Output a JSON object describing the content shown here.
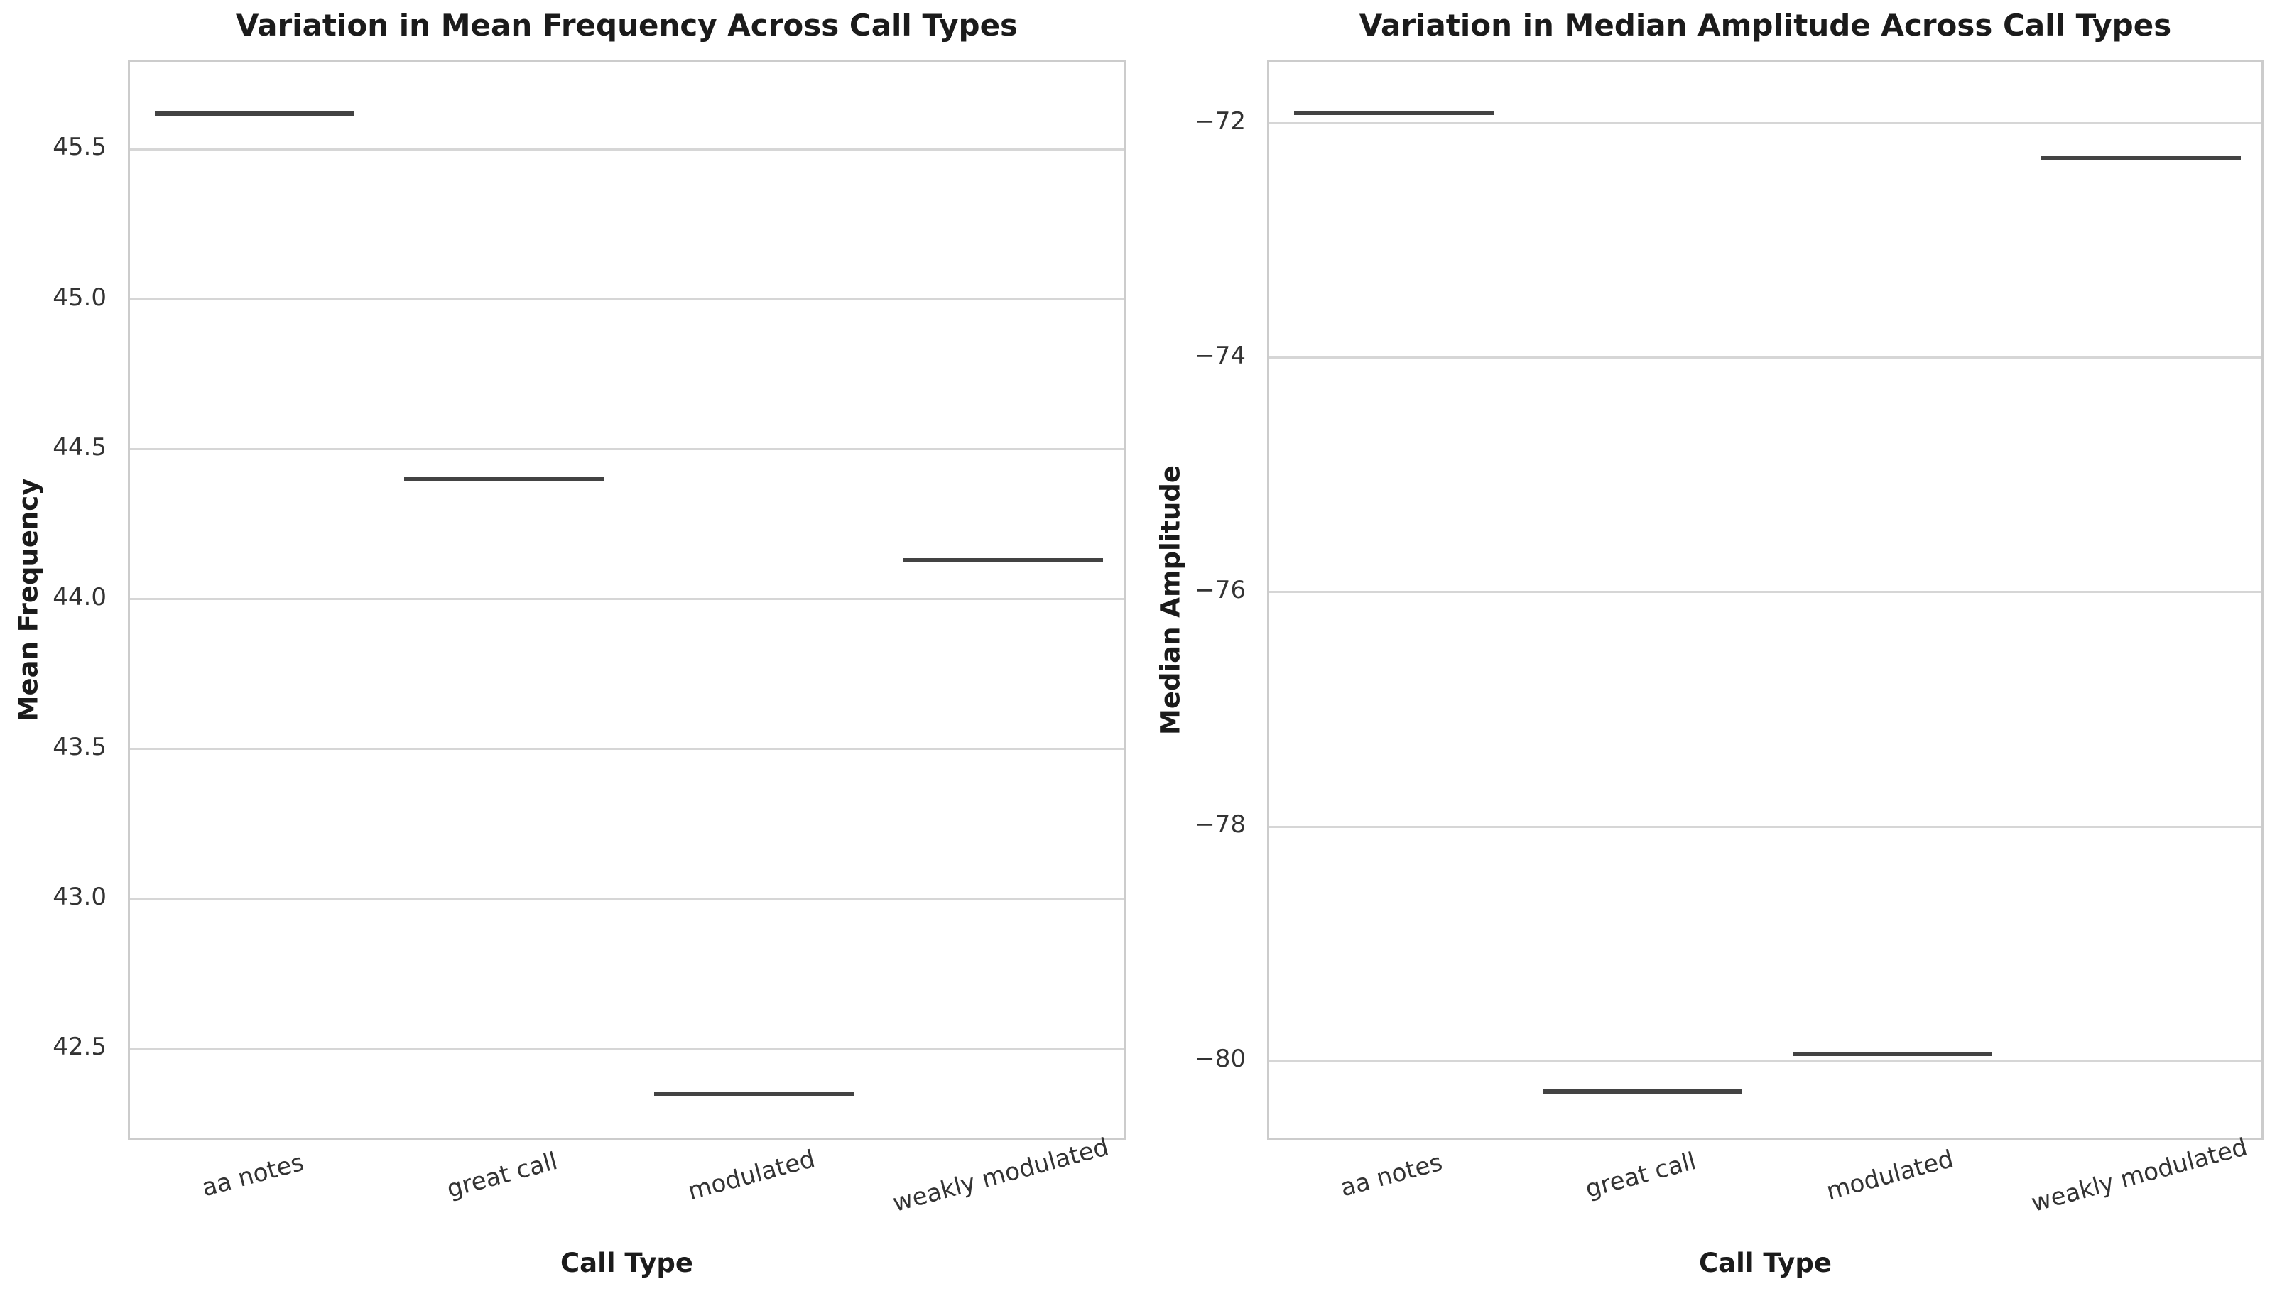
{
  "page": {
    "background": "#ffffff"
  },
  "colors": {
    "median_line": "#434343",
    "grid_line": "#d6d6d6",
    "spine": "#cccccc",
    "title_text": "#1b1b1b",
    "tick_text": "#333333"
  },
  "chart_data": [
    {
      "type": "boxplot",
      "title": "Variation in Mean Frequency Across Call Types",
      "xlabel": "Call Type",
      "ylabel": "Mean Frequency",
      "categories": [
        "aa notes",
        "great call",
        "modulated",
        "weakly modulated"
      ],
      "values": [
        45.62,
        44.4,
        42.35,
        44.13
      ],
      "note": "one observation per category so each box collapses to a single horizontal median line",
      "yticks": [
        42.5,
        43.0,
        43.5,
        44.0,
        44.5,
        45.0,
        45.5
      ],
      "ytick_labels": [
        "42.5",
        "43.0",
        "43.5",
        "44.0",
        "44.5",
        "45.0",
        "45.5"
      ],
      "ylim": [
        42.19,
        45.79
      ],
      "grid": "horizontal",
      "xtick_rotation_deg": 15,
      "legend": "none",
      "box_width_fraction": 0.8
    },
    {
      "type": "boxplot",
      "title": "Variation in Median Amplitude Across Call Types",
      "xlabel": "Call Type",
      "ylabel": "Median Amplitude",
      "categories": [
        "aa notes",
        "great call",
        "modulated",
        "weakly modulated"
      ],
      "values": [
        -71.91,
        -80.26,
        -79.94,
        -72.3
      ],
      "note": "one observation per category so each box collapses to a single horizontal median line",
      "yticks": [
        -80,
        -78,
        -76,
        -74,
        -72
      ],
      "ytick_labels": [
        "−80",
        "−78",
        "−76",
        "−74",
        "−72"
      ],
      "ylim": [
        -80.69,
        -71.48
      ],
      "grid": "horizontal",
      "xtick_rotation_deg": 15,
      "legend": "none",
      "box_width_fraction": 0.8
    }
  ]
}
